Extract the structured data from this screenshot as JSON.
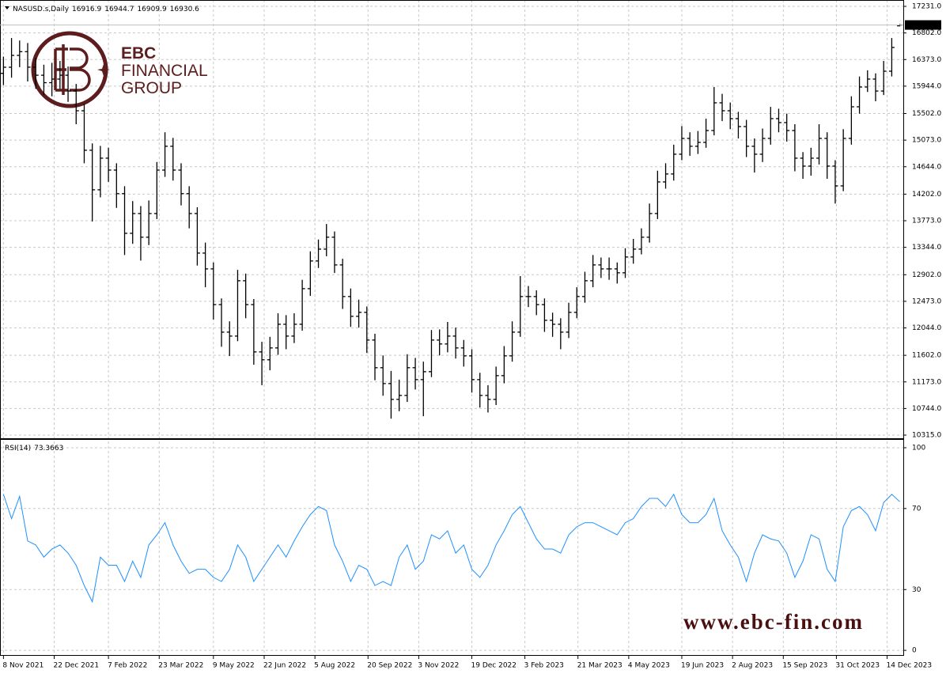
{
  "chart_data": [
    {
      "type": "ohlc",
      "title": "NASUSD.s,Daily",
      "color": "#000000",
      "grid": true,
      "xlim": [
        "2021-11-05",
        "2023-12-28"
      ],
      "xticks": [
        {
          "value": "2021-11-08",
          "label": "8 Nov 2021"
        },
        {
          "value": "2021-12-22",
          "label": "22 Dec 2021"
        },
        {
          "value": "2022-02-07",
          "label": "7 Feb 2022"
        },
        {
          "value": "2022-03-23",
          "label": "23 Mar 2022"
        },
        {
          "value": "2022-05-09",
          "label": "9 May 2022"
        },
        {
          "value": "2022-06-22",
          "label": "22 Jun 2022"
        },
        {
          "value": "2022-08-05",
          "label": "5 Aug 2022"
        },
        {
          "value": "2022-09-20",
          "label": "20 Sep 2022"
        },
        {
          "value": "2022-11-03",
          "label": "3 Nov 2022"
        },
        {
          "value": "2022-12-19",
          "label": "19 Dec 2022"
        },
        {
          "value": "2023-02-03",
          "label": "3 Feb 2023"
        },
        {
          "value": "2023-03-21",
          "label": "21 Mar 2023"
        },
        {
          "value": "2023-05-04",
          "label": "4 May 2023"
        },
        {
          "value": "2023-06-19",
          "label": "19 Jun 2023"
        },
        {
          "value": "2023-08-02",
          "label": "2 Aug 2023"
        },
        {
          "value": "2023-09-15",
          "label": "15 Sep 2023"
        },
        {
          "value": "2023-10-31",
          "label": "31 Oct 2023"
        },
        {
          "value": "2023-12-14",
          "label": "14 Dec 2023"
        }
      ],
      "ylim": [
        10264,
        17308
      ],
      "yticks": [
        {
          "value": 17231,
          "label": "17231.0"
        },
        {
          "value": 16802,
          "label": "16802.0"
        },
        {
          "value": 16373,
          "label": "16373.0"
        },
        {
          "value": 15944,
          "label": "15944.0"
        },
        {
          "value": 15502,
          "label": "15502.0"
        },
        {
          "value": 15073,
          "label": "15073.0"
        },
        {
          "value": 14644,
          "label": "14644.0"
        },
        {
          "value": 14202,
          "label": "14202.0"
        },
        {
          "value": 13773,
          "label": "13773.0"
        },
        {
          "value": 13344,
          "label": "13344.0"
        },
        {
          "value": 12902,
          "label": "12902.0"
        },
        {
          "value": 12473,
          "label": "12473.0"
        },
        {
          "value": 12044,
          "label": "12044.0"
        },
        {
          "value": 11602,
          "label": "11602.0"
        },
        {
          "value": 11173,
          "label": "11173.0"
        },
        {
          "value": 10744,
          "label": "10744.0"
        },
        {
          "value": 10315,
          "label": "10315.0"
        }
      ],
      "x": [
        "2021-11-08",
        "2021-11-15",
        "2021-11-22",
        "2021-11-29",
        "2021-12-06",
        "2021-12-13",
        "2021-12-20",
        "2021-12-27",
        "2022-01-03",
        "2022-01-10",
        "2022-01-17",
        "2022-01-24",
        "2022-01-31",
        "2022-02-07",
        "2022-02-14",
        "2022-02-21",
        "2022-02-28",
        "2022-03-07",
        "2022-03-14",
        "2022-03-21",
        "2022-03-28",
        "2022-04-04",
        "2022-04-11",
        "2022-04-18",
        "2022-04-25",
        "2022-05-02",
        "2022-05-09",
        "2022-05-16",
        "2022-05-23",
        "2022-05-30",
        "2022-06-06",
        "2022-06-13",
        "2022-06-20",
        "2022-06-27",
        "2022-07-04",
        "2022-07-11",
        "2022-07-18",
        "2022-07-25",
        "2022-08-01",
        "2022-08-08",
        "2022-08-15",
        "2022-08-22",
        "2022-08-29",
        "2022-09-05",
        "2022-09-12",
        "2022-09-19",
        "2022-09-26",
        "2022-10-03",
        "2022-10-10",
        "2022-10-17",
        "2022-10-24",
        "2022-10-31",
        "2022-11-07",
        "2022-11-14",
        "2022-11-21",
        "2022-11-28",
        "2022-12-05",
        "2022-12-12",
        "2022-12-19",
        "2022-12-26",
        "2023-01-02",
        "2023-01-09",
        "2023-01-16",
        "2023-01-23",
        "2023-01-30",
        "2023-02-06",
        "2023-02-13",
        "2023-02-20",
        "2023-02-27",
        "2023-03-06",
        "2023-03-13",
        "2023-03-20",
        "2023-03-27",
        "2023-04-03",
        "2023-04-10",
        "2023-04-17",
        "2023-04-24",
        "2023-05-01",
        "2023-05-08",
        "2023-05-15",
        "2023-05-22",
        "2023-05-29",
        "2023-06-05",
        "2023-06-12",
        "2023-06-19",
        "2023-06-26",
        "2023-07-03",
        "2023-07-10",
        "2023-07-17",
        "2023-07-24",
        "2023-07-31",
        "2023-08-07",
        "2023-08-14",
        "2023-08-21",
        "2023-08-28",
        "2023-09-04",
        "2023-09-11",
        "2023-09-18",
        "2023-09-25",
        "2023-10-02",
        "2023-10-09",
        "2023-10-16",
        "2023-10-23",
        "2023-10-30",
        "2023-11-06",
        "2023-11-13",
        "2023-11-20",
        "2023-11-27",
        "2023-12-04",
        "2023-12-11",
        "2023-12-18",
        "2023-12-25"
      ],
      "open": [
        16150,
        16249,
        16440,
        16500,
        16250,
        16120,
        16000,
        16058,
        16120,
        15865,
        15547,
        14910,
        14272,
        14782,
        14590,
        14210,
        13570,
        13889,
        13507,
        13889,
        14590,
        14974,
        14590,
        14210,
        13889,
        13251,
        12996,
        12420,
        11976,
        11912,
        12805,
        12420,
        11657,
        11530,
        11721,
        12103,
        11912,
        12103,
        12677,
        13124,
        13315,
        13507,
        13060,
        12550,
        12231,
        12295,
        11848,
        11402,
        11146,
        10891,
        10955,
        11402,
        11210,
        11338,
        11848,
        11785,
        11912,
        11721,
        11593,
        11210,
        10955,
        10891,
        11274,
        11593,
        11976,
        12550,
        12550,
        12420,
        12167,
        12103,
        11976,
        12295,
        12550,
        12805,
        13060,
        12996,
        12996,
        12933,
        13188,
        13315,
        13507,
        13889,
        14399,
        14527,
        14846,
        15101,
        14974,
        15037,
        15228,
        15675,
        15547,
        15420,
        15292,
        14974,
        14846,
        15101,
        15420,
        15356,
        15228,
        14782,
        14654,
        14782,
        15101,
        14654,
        14335,
        15101,
        15611,
        15930,
        16058,
        15865,
        16185,
        16916.9
      ],
      "high": [
        16420,
        16720,
        16680,
        16640,
        16400,
        16290,
        16320,
        16350,
        16260,
        15980,
        15660,
        15020,
        14980,
        14950,
        14700,
        14330,
        14090,
        14010,
        14100,
        14720,
        15200,
        15110,
        14700,
        14330,
        13990,
        13420,
        13100,
        12520,
        12150,
        12980,
        12920,
        12510,
        11820,
        11900,
        12280,
        12250,
        12280,
        12820,
        13280,
        13470,
        13720,
        13600,
        13160,
        12680,
        12500,
        12390,
        11950,
        11600,
        11350,
        11210,
        11620,
        11560,
        11500,
        12010,
        12020,
        12140,
        12050,
        11850,
        11700,
        11320,
        11120,
        11420,
        11750,
        12150,
        12880,
        12720,
        12650,
        12520,
        12290,
        12200,
        12450,
        12700,
        12950,
        13220,
        13180,
        13180,
        13100,
        13330,
        13480,
        13650,
        14050,
        14580,
        14700,
        15000,
        15300,
        15200,
        15220,
        15420,
        15930,
        15820,
        15680,
        15530,
        15400,
        15100,
        15260,
        15610,
        15580,
        15500,
        15330,
        14880,
        14950,
        15330,
        15200,
        14750,
        15250,
        15780,
        16100,
        16200,
        16150,
        16350,
        16720,
        16944.7
      ],
      "low": [
        15960,
        16080,
        16250,
        16020,
        15900,
        15800,
        15780,
        15900,
        15690,
        15330,
        14700,
        13760,
        14150,
        14400,
        13980,
        13220,
        13400,
        13130,
        13380,
        13800,
        14480,
        14420,
        14020,
        13650,
        13050,
        12700,
        12180,
        11740,
        11590,
        11830,
        12200,
        11450,
        11120,
        11360,
        11610,
        11700,
        11800,
        12000,
        12560,
        13010,
        13200,
        12930,
        12350,
        12060,
        12050,
        11640,
        11200,
        10950,
        10580,
        10700,
        10850,
        11050,
        10620,
        11250,
        11600,
        11650,
        11550,
        11420,
        11000,
        10760,
        10680,
        10800,
        11150,
        11500,
        11900,
        12380,
        12250,
        11980,
        11900,
        11700,
        11880,
        12200,
        12450,
        12700,
        12850,
        12820,
        12760,
        12850,
        13080,
        13230,
        13420,
        13800,
        14290,
        14420,
        14750,
        14820,
        14850,
        14950,
        15150,
        15380,
        15250,
        15100,
        14800,
        14550,
        14720,
        15000,
        15200,
        15050,
        14570,
        14450,
        14500,
        14680,
        14450,
        14050,
        14250,
        15000,
        15500,
        15850,
        15700,
        15800,
        16100,
        16909.9
      ],
      "close": [
        16249,
        16440,
        16500,
        16250,
        16120,
        16000,
        16058,
        16120,
        15865,
        15547,
        14910,
        14272,
        14782,
        14590,
        14210,
        13570,
        13889,
        13507,
        13889,
        14590,
        14974,
        14590,
        14210,
        13889,
        13251,
        12996,
        12420,
        11976,
        11912,
        12805,
        12420,
        11657,
        11530,
        11721,
        12103,
        11912,
        12103,
        12677,
        13124,
        13315,
        13507,
        13060,
        12550,
        12231,
        12295,
        11848,
        11402,
        11146,
        10891,
        10955,
        11402,
        11210,
        11338,
        11848,
        11785,
        11912,
        11721,
        11593,
        11210,
        10955,
        10891,
        11274,
        11593,
        11976,
        12550,
        12550,
        12420,
        12167,
        12103,
        11976,
        12295,
        12550,
        12805,
        13060,
        12996,
        12996,
        12933,
        13188,
        13315,
        13507,
        13889,
        14399,
        14527,
        14846,
        15101,
        14974,
        15037,
        15228,
        15675,
        15547,
        15420,
        15292,
        14974,
        14846,
        15101,
        15420,
        15356,
        15228,
        14782,
        14654,
        14782,
        15101,
        14654,
        14335,
        15101,
        15611,
        15930,
        16058,
        15865,
        16185,
        16568,
        16930.6
      ]
    },
    {
      "type": "line",
      "title": "RSI(14)",
      "color": "#1e90ff",
      "grid": true,
      "ylim": [
        -2.3,
        103.5
      ],
      "yticks": [
        100,
        70,
        30,
        0
      ],
      "x": [
        "2021-11-08",
        "2021-11-15",
        "2021-11-22",
        "2021-11-29",
        "2021-12-06",
        "2021-12-13",
        "2021-12-20",
        "2021-12-27",
        "2022-01-03",
        "2022-01-10",
        "2022-01-17",
        "2022-01-24",
        "2022-01-31",
        "2022-02-07",
        "2022-02-14",
        "2022-02-21",
        "2022-02-28",
        "2022-03-07",
        "2022-03-14",
        "2022-03-21",
        "2022-03-28",
        "2022-04-04",
        "2022-04-11",
        "2022-04-18",
        "2022-04-25",
        "2022-05-02",
        "2022-05-09",
        "2022-05-16",
        "2022-05-23",
        "2022-05-30",
        "2022-06-06",
        "2022-06-13",
        "2022-06-20",
        "2022-06-27",
        "2022-07-04",
        "2022-07-11",
        "2022-07-18",
        "2022-07-25",
        "2022-08-01",
        "2022-08-08",
        "2022-08-15",
        "2022-08-22",
        "2022-08-29",
        "2022-09-05",
        "2022-09-12",
        "2022-09-19",
        "2022-09-26",
        "2022-10-03",
        "2022-10-10",
        "2022-10-17",
        "2022-10-24",
        "2022-10-31",
        "2022-11-07",
        "2022-11-14",
        "2022-11-21",
        "2022-11-28",
        "2022-12-05",
        "2022-12-12",
        "2022-12-19",
        "2022-12-26",
        "2023-01-02",
        "2023-01-09",
        "2023-01-16",
        "2023-01-23",
        "2023-01-30",
        "2023-02-06",
        "2023-02-13",
        "2023-02-20",
        "2023-02-27",
        "2023-03-06",
        "2023-03-13",
        "2023-03-20",
        "2023-03-27",
        "2023-04-03",
        "2023-04-10",
        "2023-04-17",
        "2023-04-24",
        "2023-05-01",
        "2023-05-08",
        "2023-05-15",
        "2023-05-22",
        "2023-05-29",
        "2023-06-05",
        "2023-06-12",
        "2023-06-19",
        "2023-06-26",
        "2023-07-03",
        "2023-07-10",
        "2023-07-17",
        "2023-07-24",
        "2023-07-31",
        "2023-08-07",
        "2023-08-14",
        "2023-08-21",
        "2023-08-28",
        "2023-09-04",
        "2023-09-11",
        "2023-09-18",
        "2023-09-25",
        "2023-10-02",
        "2023-10-09",
        "2023-10-16",
        "2023-10-23",
        "2023-10-30",
        "2023-11-06",
        "2023-11-13",
        "2023-11-20",
        "2023-11-27",
        "2023-12-04",
        "2023-12-11",
        "2023-12-18",
        "2023-12-25"
      ],
      "values": [
        77,
        65,
        76,
        54,
        52,
        46,
        50,
        52,
        48,
        42,
        32,
        24,
        46,
        42,
        42,
        34,
        44,
        36,
        52,
        57,
        63,
        52,
        44,
        38,
        40,
        40,
        36,
        34,
        40,
        52,
        46,
        34,
        40,
        46,
        52,
        46,
        54,
        61,
        67,
        71,
        69,
        52,
        44,
        34,
        42,
        40,
        32,
        34,
        32,
        46,
        52,
        40,
        44,
        57,
        55,
        59,
        48,
        52,
        40,
        36,
        42,
        52,
        59,
        67,
        71,
        63,
        55,
        50,
        50,
        48,
        57,
        61,
        63,
        63,
        61,
        59,
        57,
        63,
        65,
        71,
        75,
        75,
        71,
        77,
        67,
        63,
        63,
        67,
        75,
        59,
        52,
        46,
        34,
        48,
        57,
        55,
        54,
        48,
        36,
        44,
        57,
        55,
        40,
        34,
        61,
        69,
        71,
        67,
        59,
        73,
        77,
        73.3663
      ]
    }
  ],
  "logo": {
    "brand": "EBC",
    "line2": "FINANCIAL",
    "line3": "GROUP",
    "url": "www.ebc-fin.com"
  }
}
